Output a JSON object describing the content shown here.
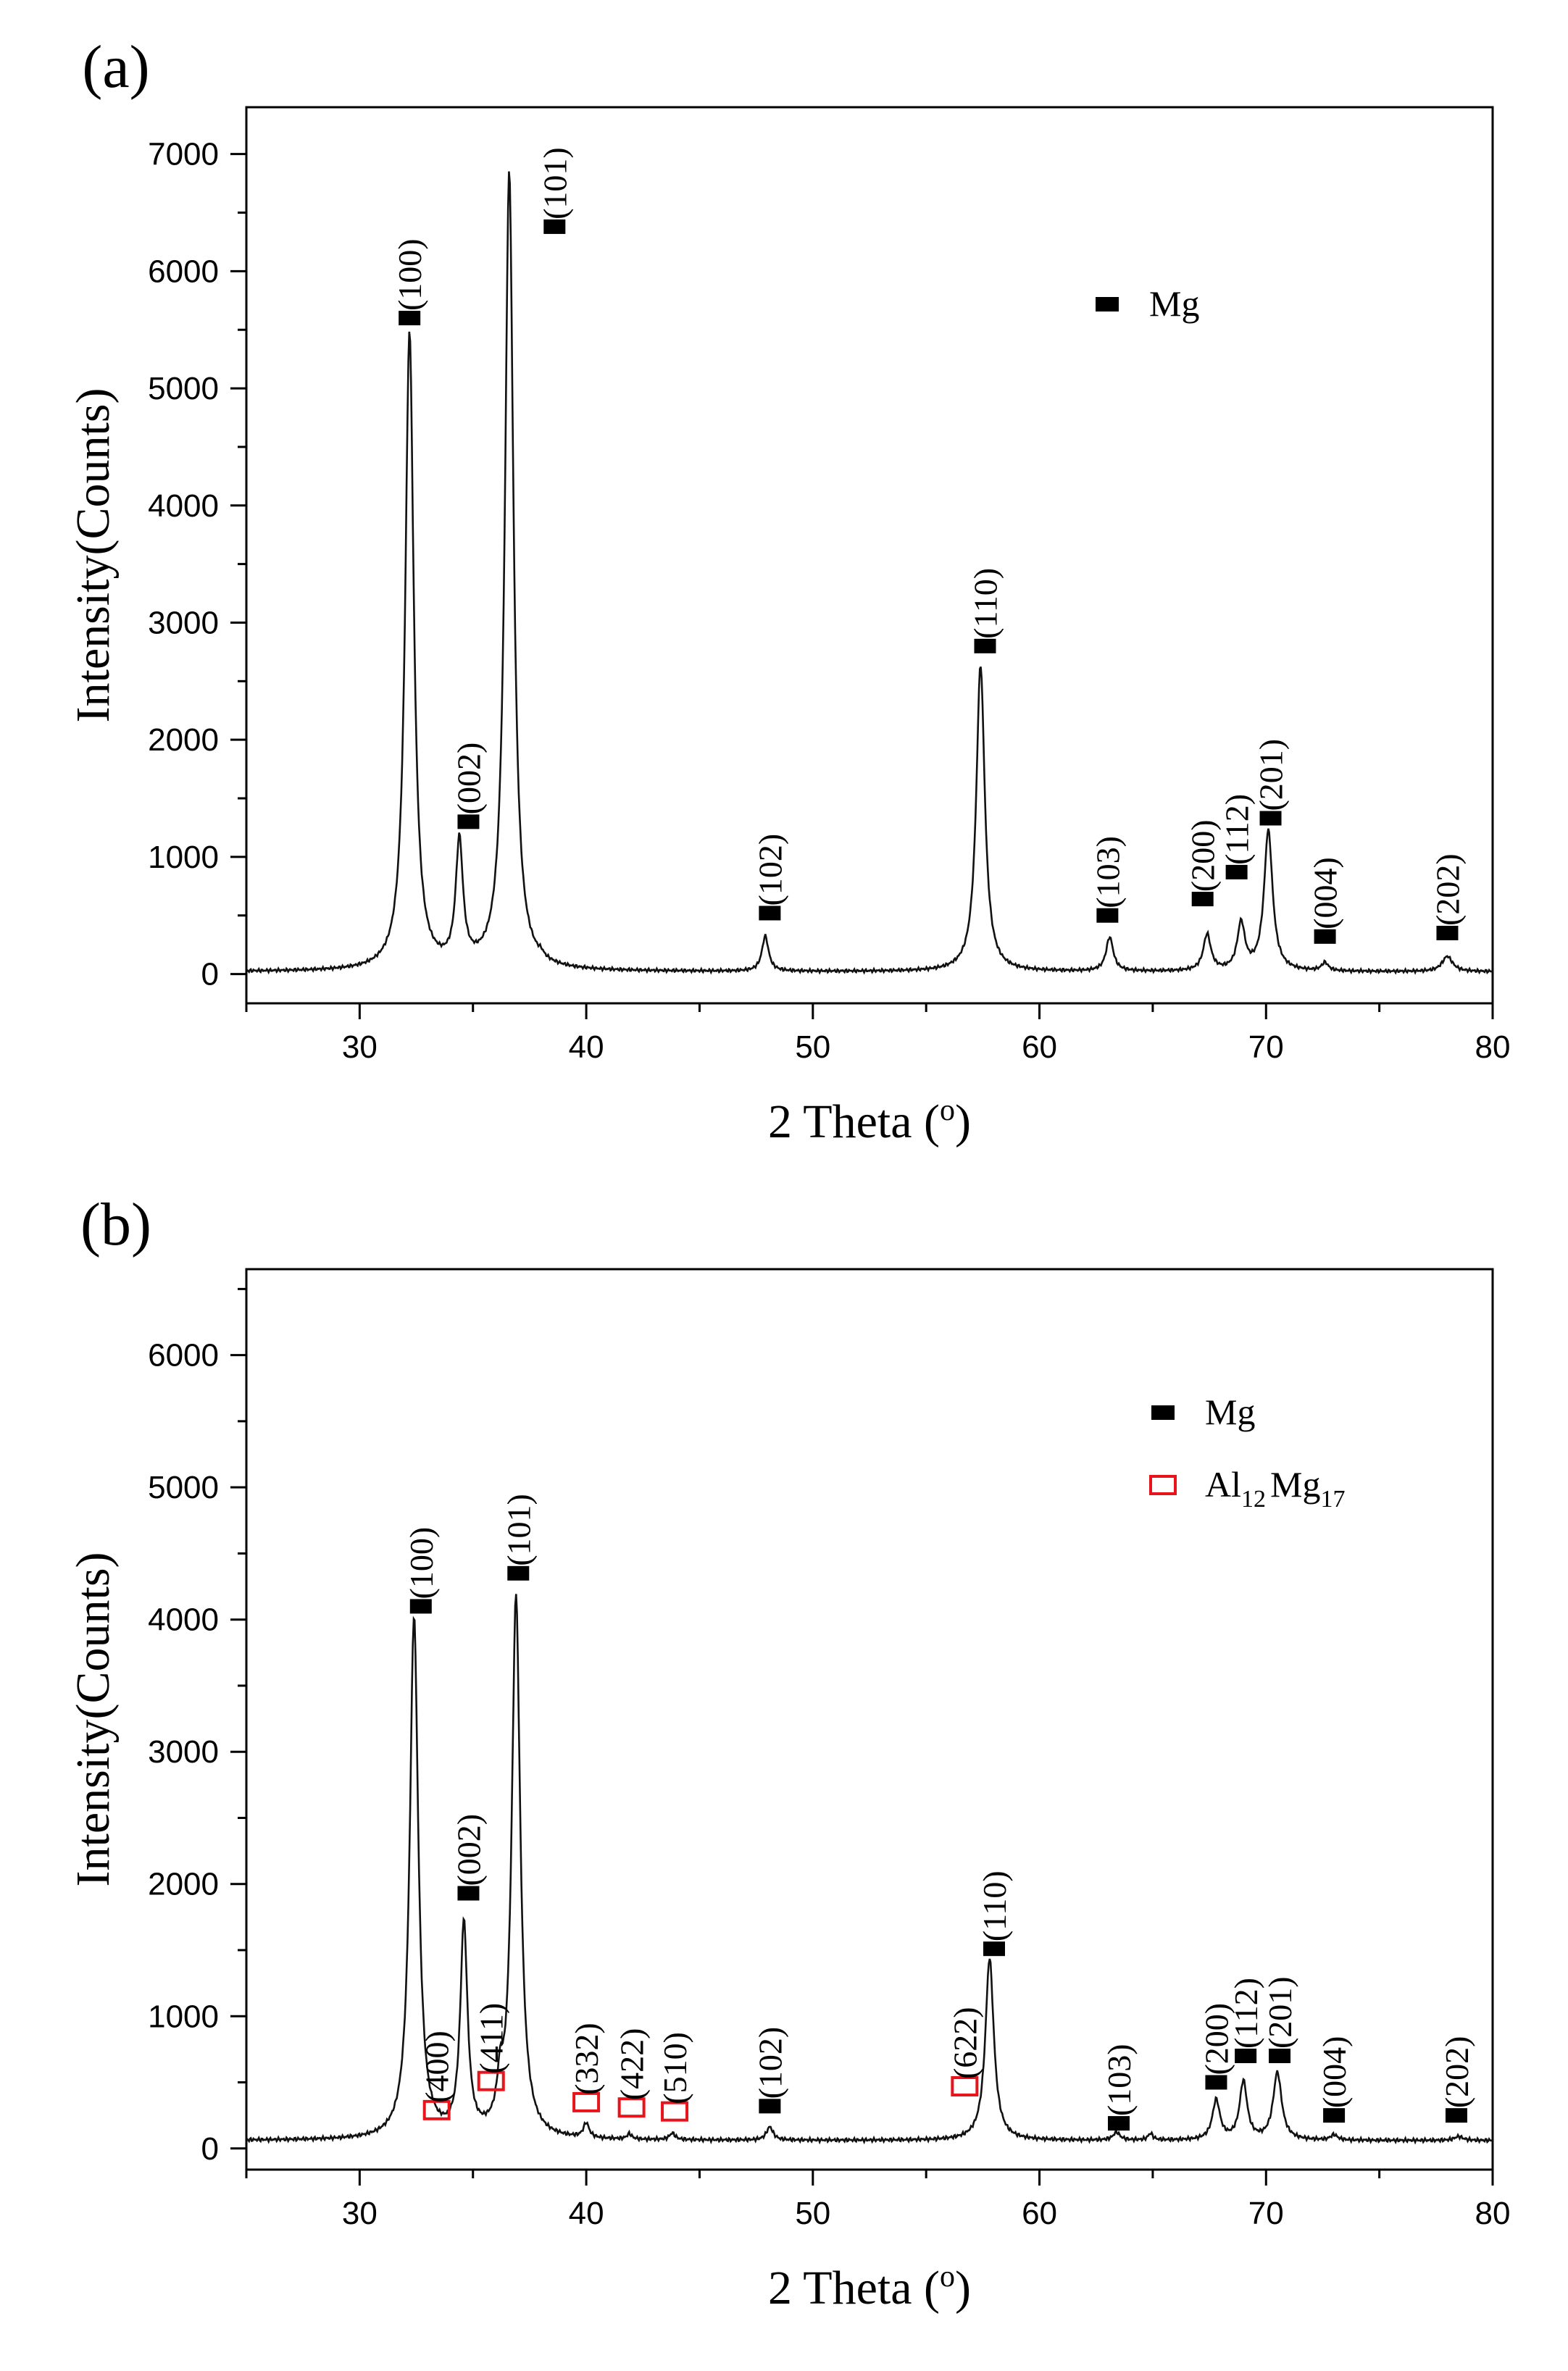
{
  "figure": {
    "panels": [
      {
        "letter": "(a)"
      },
      {
        "letter": "(b)"
      }
    ]
  },
  "colors": {
    "mg_marker": "#000000",
    "al12mg17_marker": "#e8141c",
    "trace": "#111111"
  },
  "chart_data": [
    {
      "type": "line",
      "panel": "(a)",
      "xlabel": "2 Theta (o)",
      "ylabel": "Intensity(Counts)",
      "xlim": [
        25,
        80
      ],
      "ylim": [
        -250,
        7400
      ],
      "xticks": [
        30,
        40,
        50,
        60,
        70,
        80
      ],
      "yticks": [
        0,
        1000,
        2000,
        3000,
        4000,
        5000,
        6000,
        7000
      ],
      "baseline": 20,
      "series": [
        {
          "peaks": [
            {
              "x": 32.2,
              "y": 5450,
              "w": 0.45
            },
            {
              "x": 34.4,
              "y": 1050,
              "w": 0.38
            },
            {
              "x": 36.6,
              "y": 6820,
              "w": 0.45
            },
            {
              "x": 38.0,
              "y": 30,
              "w": 0.25
            },
            {
              "x": 47.9,
              "y": 300,
              "w": 0.35
            },
            {
              "x": 57.4,
              "y": 2620,
              "w": 0.45
            },
            {
              "x": 63.1,
              "y": 290,
              "w": 0.38
            },
            {
              "x": 67.4,
              "y": 310,
              "w": 0.4
            },
            {
              "x": 68.9,
              "y": 400,
              "w": 0.4
            },
            {
              "x": 70.1,
              "y": 1200,
              "w": 0.45
            },
            {
              "x": 72.6,
              "y": 70,
              "w": 0.35
            },
            {
              "x": 78.0,
              "y": 130,
              "w": 0.55
            }
          ]
        }
      ],
      "phases": [
        {
          "symbol": "filled-square",
          "label": "Mg",
          "label_sub": ""
        }
      ],
      "annotations": [
        {
          "text": "(100)",
          "phase": "filled-square",
          "x": 32.2,
          "y": 5600
        },
        {
          "text": "(002)",
          "phase": "filled-square",
          "x": 34.8,
          "y": 1300
        },
        {
          "text": "(101)",
          "phase": "filled-square",
          "x": 38.6,
          "y": 6380
        },
        {
          "text": "(102)",
          "phase": "filled-square",
          "x": 48.1,
          "y": 520
        },
        {
          "text": "(110)",
          "phase": "filled-square",
          "x": 57.6,
          "y": 2800
        },
        {
          "text": "(103)",
          "phase": "filled-square",
          "x": 63.0,
          "y": 500
        },
        {
          "text": "(200)",
          "phase": "filled-square",
          "x": 67.2,
          "y": 640
        },
        {
          "text": "(112)",
          "phase": "filled-square",
          "x": 68.7,
          "y": 870
        },
        {
          "text": "(201)",
          "phase": "filled-square",
          "x": 70.2,
          "y": 1330
        },
        {
          "text": "(004)",
          "phase": "filled-square",
          "x": 72.6,
          "y": 320
        },
        {
          "text": "(202)",
          "phase": "filled-square",
          "x": 78.0,
          "y": 350
        }
      ],
      "legend_position": "upper-right"
    },
    {
      "type": "line",
      "panel": "(b)",
      "xlabel": "2 Theta (o)",
      "ylabel": "Intensity(Counts)",
      "xlim": [
        25,
        80
      ],
      "ylim": [
        -160,
        6650
      ],
      "xticks": [
        30,
        40,
        50,
        60,
        70,
        80
      ],
      "yticks": [
        0,
        1000,
        2000,
        3000,
        4000,
        5000,
        6000
      ],
      "baseline": 60,
      "series": [
        {
          "peaks": [
            {
              "x": 32.4,
              "y": 3950,
              "w": 0.45
            },
            {
              "x": 34.6,
              "y": 1600,
              "w": 0.38
            },
            {
              "x": 36.2,
              "y": 290,
              "w": 0.3
            },
            {
              "x": 36.9,
              "y": 4100,
              "w": 0.45
            },
            {
              "x": 40.0,
              "y": 110,
              "w": 0.3
            },
            {
              "x": 41.9,
              "y": 40,
              "w": 0.25
            },
            {
              "x": 43.8,
              "y": 50,
              "w": 0.3
            },
            {
              "x": 48.1,
              "y": 100,
              "w": 0.35
            },
            {
              "x": 57.8,
              "y": 1380,
              "w": 0.45
            },
            {
              "x": 63.4,
              "y": 60,
              "w": 0.35
            },
            {
              "x": 64.9,
              "y": 50,
              "w": 0.25
            },
            {
              "x": 67.8,
              "y": 300,
              "w": 0.4
            },
            {
              "x": 69.0,
              "y": 440,
              "w": 0.4
            },
            {
              "x": 70.5,
              "y": 510,
              "w": 0.45
            },
            {
              "x": 73.0,
              "y": 40,
              "w": 0.35
            },
            {
              "x": 78.5,
              "y": 30,
              "w": 0.45
            }
          ]
        }
      ],
      "phases": [
        {
          "symbol": "filled-square",
          "label": "Mg",
          "label_sub": ""
        },
        {
          "symbol": "open-square",
          "label": "Al",
          "label_sub": "12",
          "label2": "Mg",
          "label2_sub": "17"
        }
      ],
      "annotations": [
        {
          "text": "(100)",
          "phase": "filled-square",
          "x": 32.7,
          "y": 4100
        },
        {
          "text": "(002)",
          "phase": "filled-square",
          "x": 34.8,
          "y": 1930
        },
        {
          "text": "(101)",
          "phase": "filled-square",
          "x": 37.0,
          "y": 4350
        },
        {
          "text": "(400)",
          "phase": "open-square",
          "x": 33.4,
          "y": 290
        },
        {
          "text": "(411)",
          "phase": "open-square",
          "x": 35.8,
          "y": 510
        },
        {
          "text": "(332)",
          "phase": "open-square",
          "x": 40.0,
          "y": 350
        },
        {
          "text": "(422)",
          "phase": "open-square",
          "x": 42.0,
          "y": 310
        },
        {
          "text": "(510)",
          "phase": "open-square",
          "x": 43.9,
          "y": 280
        },
        {
          "text": "(102)",
          "phase": "filled-square",
          "x": 48.1,
          "y": 320
        },
        {
          "text": "(622)",
          "phase": "open-square",
          "x": 56.7,
          "y": 470
        },
        {
          "text": "(110)",
          "phase": "filled-square",
          "x": 58.0,
          "y": 1510
        },
        {
          "text": "(103)",
          "phase": "filled-square",
          "x": 63.5,
          "y": 190
        },
        {
          "text": "(200)",
          "phase": "filled-square",
          "x": 67.8,
          "y": 500
        },
        {
          "text": "(112)",
          "phase": "filled-square",
          "x": 69.1,
          "y": 700
        },
        {
          "text": "(201)",
          "phase": "filled-square",
          "x": 70.6,
          "y": 700
        },
        {
          "text": "(004)",
          "phase": "filled-square",
          "x": 73.0,
          "y": 250
        },
        {
          "text": "(202)",
          "phase": "filled-square",
          "x": 78.4,
          "y": 250
        }
      ],
      "legend_position": "upper-right"
    }
  ]
}
